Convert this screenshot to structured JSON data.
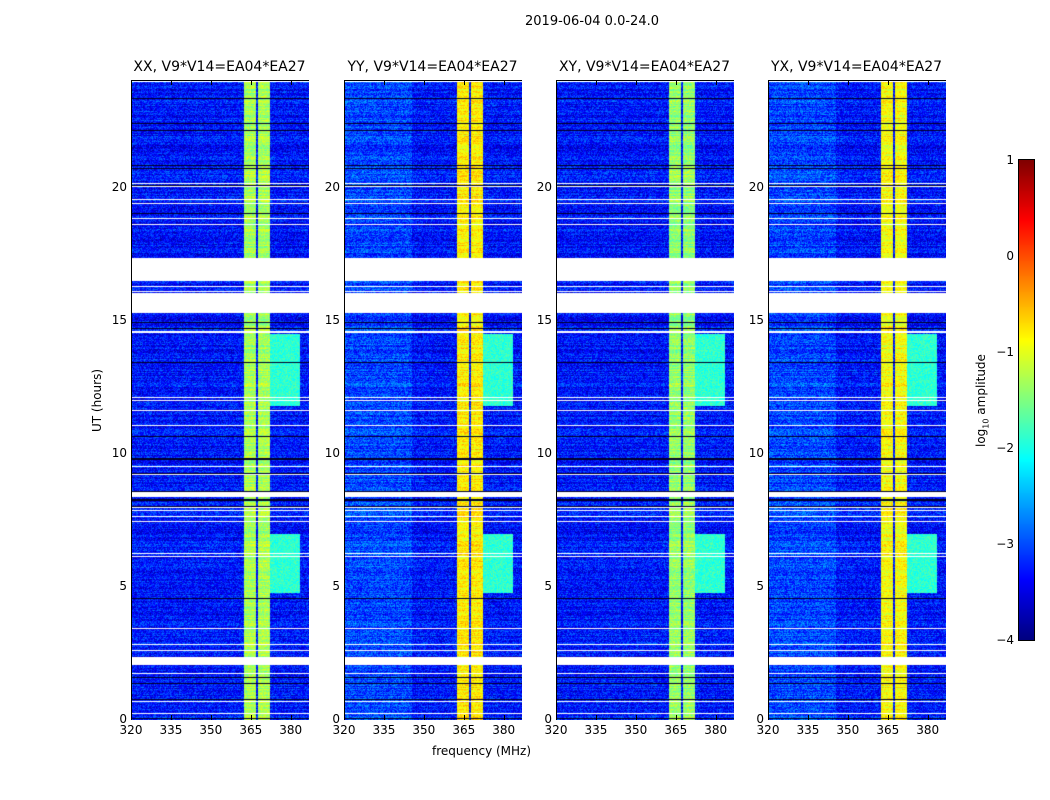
{
  "suptitle": "2019-06-04 0.0-24.0",
  "chart_data": {
    "type": "heatmap",
    "title": "2019-06-04 0.0-24.0",
    "xlabel": "frequency (MHz)",
    "ylabel": "UT (hours)",
    "xlim": [
      320,
      386.5
    ],
    "ylim": [
      0,
      24
    ],
    "xticks": [
      "320",
      "335",
      "350",
      "365",
      "380"
    ],
    "yticks": [
      "0",
      "5",
      "10",
      "15",
      "20"
    ],
    "panels": [
      {
        "title": "XX, V9*V14=EA04*EA27",
        "band_level": -1.3
      },
      {
        "title": "YY, V9*V14=EA04*EA27",
        "band_level": -0.8
      },
      {
        "title": "XY, V9*V14=EA04*EA27",
        "band_level": -1.4
      },
      {
        "title": "YX, V9*V14=EA04*EA27",
        "band_level": -0.9
      }
    ],
    "bright_band_mhz": [
      362,
      371.7
    ],
    "flagged_hours": [
      [
        16.52,
        17.38
      ],
      [
        15.32,
        16.07
      ],
      [
        8.4,
        8.6
      ],
      [
        2.1,
        2.4
      ]
    ],
    "colorbar": {
      "label": "log10 amplitude",
      "range": [
        -4,
        1
      ],
      "ticks": [
        "1",
        "0",
        "−1",
        "−2",
        "−3",
        "−4"
      ],
      "colormap": "jet"
    }
  }
}
